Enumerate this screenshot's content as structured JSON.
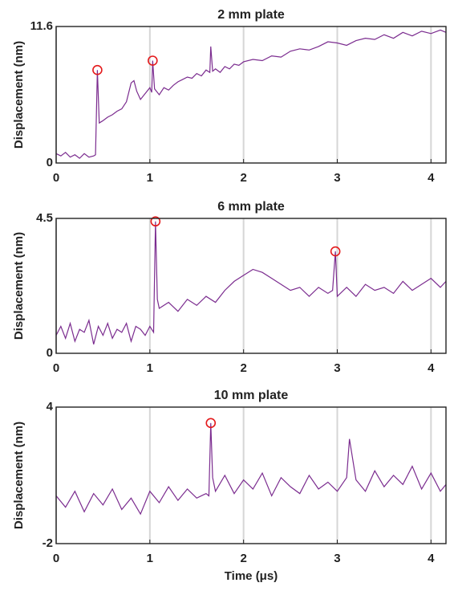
{
  "chart_data": [
    {
      "type": "line",
      "title": "2 mm plate",
      "ylabel": "Displacement (nm)",
      "xlim": [
        0,
        4.16
      ],
      "xticks": [
        0,
        1,
        2,
        3,
        4
      ],
      "ylim": [
        0,
        11.6
      ],
      "yticks": [
        0,
        11.6
      ],
      "xgrid": true,
      "x": [
        0,
        0.05,
        0.1,
        0.15,
        0.2,
        0.25,
        0.3,
        0.35,
        0.4,
        0.42,
        0.44,
        0.46,
        0.5,
        0.55,
        0.6,
        0.65,
        0.7,
        0.75,
        0.8,
        0.83,
        0.86,
        0.9,
        0.95,
        1.0,
        1.02,
        1.03,
        1.05,
        1.1,
        1.15,
        1.2,
        1.25,
        1.3,
        1.35,
        1.4,
        1.45,
        1.5,
        1.55,
        1.6,
        1.64,
        1.65,
        1.67,
        1.7,
        1.75,
        1.8,
        1.85,
        1.9,
        1.95,
        2.0,
        2.1,
        2.2,
        2.3,
        2.4,
        2.5,
        2.6,
        2.7,
        2.8,
        2.9,
        3.0,
        3.1,
        3.2,
        3.3,
        3.4,
        3.5,
        3.6,
        3.7,
        3.8,
        3.9,
        4.0,
        4.1,
        4.16
      ],
      "series": [
        {
          "color": "#7b2c8f",
          "values": [
            0.8,
            0.6,
            0.9,
            0.5,
            0.7,
            0.4,
            0.8,
            0.5,
            0.6,
            0.7,
            7.9,
            3.4,
            3.6,
            3.9,
            4.1,
            4.4,
            4.6,
            5.2,
            6.8,
            7.0,
            6.1,
            5.4,
            5.9,
            6.4,
            6.0,
            8.7,
            6.3,
            5.8,
            6.4,
            6.2,
            6.6,
            6.9,
            7.1,
            7.3,
            7.2,
            7.6,
            7.4,
            7.9,
            7.7,
            9.9,
            7.8,
            8.0,
            7.7,
            8.2,
            8.0,
            8.4,
            8.3,
            8.6,
            8.8,
            8.7,
            9.1,
            9.0,
            9.5,
            9.7,
            9.6,
            9.9,
            10.3,
            10.2,
            10.0,
            10.4,
            10.6,
            10.5,
            10.9,
            10.6,
            11.1,
            10.8,
            11.2,
            11.0,
            11.3,
            11.1
          ]
        }
      ],
      "markers": {
        "color": "#e41a1c",
        "x": [
          0.44,
          1.03
        ],
        "values": [
          7.9,
          8.7
        ]
      }
    },
    {
      "type": "line",
      "title": "6 mm plate",
      "ylabel": "Displacement (nm)",
      "xlim": [
        0,
        4.16
      ],
      "xticks": [
        0,
        1,
        2,
        3,
        4
      ],
      "ylim": [
        0,
        4.5
      ],
      "yticks": [
        0,
        4.5
      ],
      "xgrid": true,
      "x": [
        0,
        0.05,
        0.1,
        0.15,
        0.2,
        0.25,
        0.3,
        0.35,
        0.4,
        0.45,
        0.5,
        0.55,
        0.6,
        0.65,
        0.7,
        0.75,
        0.8,
        0.85,
        0.9,
        0.95,
        1.0,
        1.04,
        1.06,
        1.08,
        1.1,
        1.2,
        1.3,
        1.4,
        1.5,
        1.6,
        1.7,
        1.8,
        1.9,
        2.0,
        2.1,
        2.2,
        2.3,
        2.4,
        2.5,
        2.6,
        2.7,
        2.8,
        2.9,
        2.95,
        2.98,
        3.0,
        3.1,
        3.2,
        3.3,
        3.4,
        3.5,
        3.6,
        3.7,
        3.8,
        3.9,
        4.0,
        4.1,
        4.16
      ],
      "series": [
        {
          "color": "#7b2c8f",
          "values": [
            0.6,
            0.9,
            0.5,
            1.0,
            0.4,
            0.8,
            0.7,
            1.1,
            0.3,
            0.9,
            0.6,
            1.0,
            0.5,
            0.8,
            0.7,
            1.0,
            0.4,
            0.9,
            0.8,
            0.6,
            0.9,
            0.7,
            4.4,
            1.8,
            1.5,
            1.7,
            1.4,
            1.8,
            1.6,
            1.9,
            1.7,
            2.1,
            2.4,
            2.6,
            2.8,
            2.7,
            2.5,
            2.3,
            2.1,
            2.2,
            1.9,
            2.2,
            2.0,
            2.1,
            3.4,
            1.9,
            2.2,
            1.9,
            2.3,
            2.1,
            2.2,
            2.0,
            2.4,
            2.1,
            2.3,
            2.5,
            2.2,
            2.4
          ]
        }
      ],
      "markers": {
        "color": "#e41a1c",
        "x": [
          1.06,
          2.98
        ],
        "values": [
          4.4,
          3.4
        ]
      }
    },
    {
      "type": "line",
      "title": "10 mm plate",
      "ylabel": "Displacement (nm)",
      "xlabel": "Time (μs)",
      "xlim": [
        0,
        4.16
      ],
      "xticks": [
        0,
        1,
        2,
        3,
        4
      ],
      "ylim": [
        -2,
        4
      ],
      "yticks": [
        -2,
        4
      ],
      "xgrid": true,
      "x": [
        0,
        0.1,
        0.2,
        0.3,
        0.4,
        0.5,
        0.6,
        0.7,
        0.8,
        0.9,
        1.0,
        1.1,
        1.2,
        1.3,
        1.4,
        1.5,
        1.6,
        1.63,
        1.65,
        1.67,
        1.7,
        1.8,
        1.9,
        2.0,
        2.1,
        2.2,
        2.3,
        2.4,
        2.5,
        2.6,
        2.7,
        2.8,
        2.9,
        3.0,
        3.1,
        3.13,
        3.2,
        3.3,
        3.4,
        3.5,
        3.6,
        3.7,
        3.8,
        3.9,
        4.0,
        4.1,
        4.16
      ],
      "series": [
        {
          "color": "#7b2c8f",
          "values": [
            0.1,
            -0.4,
            0.3,
            -0.6,
            0.2,
            -0.3,
            0.4,
            -0.5,
            0.0,
            -0.7,
            0.3,
            -0.2,
            0.5,
            -0.1,
            0.4,
            0.0,
            0.2,
            0.1,
            3.3,
            0.9,
            0.3,
            1.0,
            0.2,
            0.8,
            0.4,
            1.1,
            0.1,
            0.9,
            0.5,
            0.2,
            1.0,
            0.4,
            0.7,
            0.3,
            0.9,
            2.6,
            0.8,
            0.3,
            1.2,
            0.5,
            1.0,
            0.6,
            1.4,
            0.4,
            1.1,
            0.3,
            0.6
          ]
        }
      ],
      "markers": {
        "color": "#e41a1c",
        "x": [
          1.65
        ],
        "values": [
          3.3
        ]
      }
    }
  ]
}
